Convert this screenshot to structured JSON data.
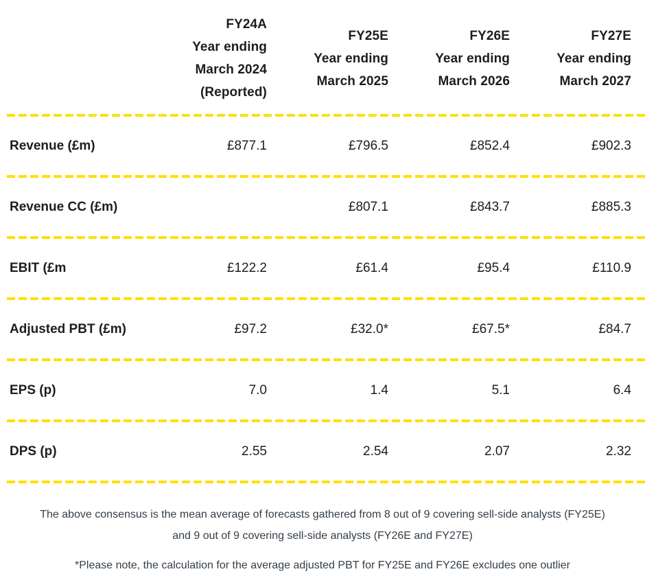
{
  "table": {
    "columns": [
      {
        "title": "FY24A",
        "sub1": "Year ending",
        "sub2": "March 2024",
        "sub3": "(Reported)"
      },
      {
        "title": "FY25E",
        "sub1": "Year ending",
        "sub2": "March 2025"
      },
      {
        "title": "FY26E",
        "sub1": "Year ending",
        "sub2": "March 2026"
      },
      {
        "title": "FY27E",
        "sub1": "Year ending",
        "sub2": "March 2027"
      }
    ],
    "rows": [
      {
        "label": "Revenue (£m)",
        "values": [
          "£877.1",
          "£796.5",
          "£852.4",
          "£902.3"
        ]
      },
      {
        "label": "Revenue CC (£m)",
        "values": [
          "",
          "£807.1",
          "£843.7",
          "£885.3"
        ]
      },
      {
        "label": "EBIT (£m",
        "values": [
          "£122.2",
          "£61.4",
          "£95.4",
          "£110.9"
        ]
      },
      {
        "label": "Adjusted PBT (£m)",
        "values": [
          "£97.2",
          "£32.0*",
          "£67.5*",
          "£84.7"
        ]
      },
      {
        "label": "EPS (p)",
        "values": [
          "7.0",
          "1.4",
          "5.1",
          "6.4"
        ]
      },
      {
        "label": "DPS (p)",
        "values": [
          "2.55",
          "2.54",
          "2.07",
          "2.32"
        ]
      }
    ]
  },
  "footnotes": {
    "consensus_line1": "The above consensus is the mean average of forecasts gathered from 8 out of 9 covering sell-side analysts (FY25E)",
    "consensus_line2": "and 9 out of 9 covering sell-side analysts (FY26E and FY27E)",
    "outlier_note": "*Please note, the calculation for the average adjusted PBT for FY25E and FY26E excludes one outlier"
  },
  "colors": {
    "divider_yellow": "#FFDF00",
    "table_text": "#1D1D1B",
    "footnote_text": "#333E48",
    "background": "#FFFFFF"
  }
}
